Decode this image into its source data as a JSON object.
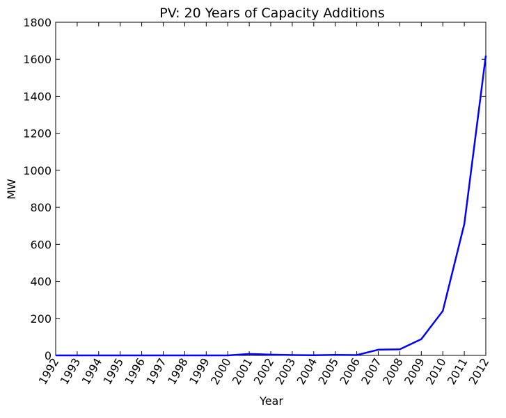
{
  "chart_data": {
    "type": "line",
    "title": "PV: 20 Years of Capacity Additions",
    "xlabel": "Year",
    "ylabel": "MW",
    "x": [
      "1992",
      "1993",
      "1994",
      "1995",
      "1996",
      "1997",
      "1998",
      "1999",
      "2000",
      "2001",
      "2002",
      "2003",
      "2004",
      "2005",
      "2006",
      "2007",
      "2008",
      "2009",
      "2010",
      "2011",
      "2012"
    ],
    "series": [
      {
        "values": [
          0,
          0,
          0,
          0,
          0,
          0,
          0,
          0,
          0,
          8,
          4,
          2,
          1,
          3,
          2,
          31,
          33,
          88,
          240,
          710,
          1620
        ],
        "color": "#0000ff"
      }
    ],
    "ylim": [
      0,
      1800
    ],
    "yticks": [
      0,
      200,
      400,
      600,
      800,
      1000,
      1200,
      1400,
      1600,
      1800
    ],
    "grid": false,
    "legend": "none"
  }
}
